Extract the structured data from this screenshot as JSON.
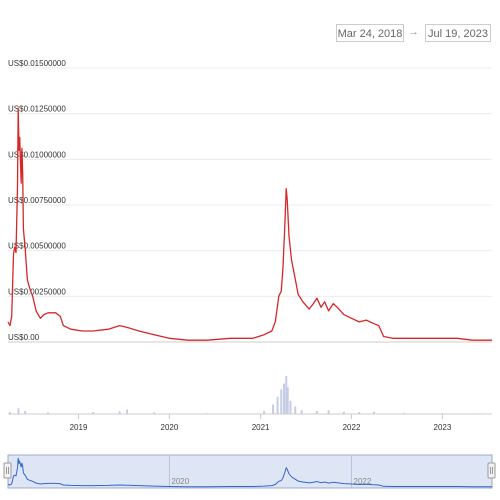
{
  "date_range": {
    "from": "Mar 24, 2018",
    "to": "Jul 19, 2023",
    "arrow": "→"
  },
  "navigator": {
    "tick_labels": [
      "2020",
      "2022"
    ]
  },
  "chart_data": {
    "type": "line",
    "title": "",
    "xlabel": "",
    "ylabel": "",
    "x_range": [
      "2018-03-24",
      "2023-07-19"
    ],
    "ylim": [
      0,
      0.015
    ],
    "y_tick_labels": [
      "US$0.01500000",
      "US$0.01250000",
      "US$0.01000000",
      "US$0.00750000",
      "US$0.00500000",
      "US$0.00250000",
      "US$0.00"
    ],
    "y_tick_values": [
      0.015,
      0.0125,
      0.01,
      0.0075,
      0.005,
      0.0025,
      0
    ],
    "x_tick_labels": [
      "2019",
      "2020",
      "2021",
      "2022",
      "2023"
    ],
    "x_tick_dates": [
      "2019-01-01",
      "2020-01-01",
      "2021-01-01",
      "2022-01-01",
      "2023-01-01"
    ],
    "series": [
      {
        "color": "#d62728",
        "points": [
          [
            "2018-03-24",
            0.0011
          ],
          [
            "2018-04-01",
            0.0009
          ],
          [
            "2018-04-08",
            0.0014
          ],
          [
            "2018-04-15",
            0.0048
          ],
          [
            "2018-04-20",
            0.0052
          ],
          [
            "2018-04-25",
            0.0049
          ],
          [
            "2018-05-01",
            0.0085
          ],
          [
            "2018-05-04",
            0.0128
          ],
          [
            "2018-05-07",
            0.0105
          ],
          [
            "2018-05-10",
            0.0112
          ],
          [
            "2018-05-13",
            0.0098
          ],
          [
            "2018-05-16",
            0.0087
          ],
          [
            "2018-05-19",
            0.0106
          ],
          [
            "2018-05-22",
            0.0092
          ],
          [
            "2018-05-25",
            0.0062
          ],
          [
            "2018-06-01",
            0.0051
          ],
          [
            "2018-06-10",
            0.0034
          ],
          [
            "2018-06-20",
            0.0029
          ],
          [
            "2018-07-01",
            0.0025
          ],
          [
            "2018-07-15",
            0.0017
          ],
          [
            "2018-08-01",
            0.0013
          ],
          [
            "2018-08-15",
            0.0015
          ],
          [
            "2018-09-01",
            0.0016
          ],
          [
            "2018-10-01",
            0.0016
          ],
          [
            "2018-10-20",
            0.0014
          ],
          [
            "2018-11-01",
            0.0009
          ],
          [
            "2018-12-01",
            0.0007
          ],
          [
            "2019-01-15",
            0.0006
          ],
          [
            "2019-03-01",
            0.0006
          ],
          [
            "2019-05-01",
            0.0007
          ],
          [
            "2019-06-15",
            0.0009
          ],
          [
            "2019-07-15",
            0.0008
          ],
          [
            "2019-09-01",
            0.0006
          ],
          [
            "2019-11-01",
            0.0004
          ],
          [
            "2020-01-01",
            0.0002
          ],
          [
            "2020-03-15",
            0.0001
          ],
          [
            "2020-06-01",
            0.0001
          ],
          [
            "2020-09-01",
            0.0002
          ],
          [
            "2020-12-01",
            0.0002
          ],
          [
            "2021-01-15",
            0.0004
          ],
          [
            "2021-02-15",
            0.0006
          ],
          [
            "2021-03-01",
            0.0011
          ],
          [
            "2021-03-15",
            0.0025
          ],
          [
            "2021-03-25",
            0.0028
          ],
          [
            "2021-04-01",
            0.0041
          ],
          [
            "2021-04-08",
            0.0062
          ],
          [
            "2021-04-14",
            0.0084
          ],
          [
            "2021-04-18",
            0.0078
          ],
          [
            "2021-04-25",
            0.0058
          ],
          [
            "2021-05-05",
            0.0045
          ],
          [
            "2021-05-15",
            0.0038
          ],
          [
            "2021-06-01",
            0.0026
          ],
          [
            "2021-06-20",
            0.0022
          ],
          [
            "2021-07-15",
            0.0018
          ],
          [
            "2021-08-01",
            0.0021
          ],
          [
            "2021-08-15",
            0.0024
          ],
          [
            "2021-09-01",
            0.0019
          ],
          [
            "2021-09-15",
            0.0022
          ],
          [
            "2021-10-01",
            0.0017
          ],
          [
            "2021-10-20",
            0.0021
          ],
          [
            "2021-11-05",
            0.0019
          ],
          [
            "2021-12-01",
            0.0015
          ],
          [
            "2022-01-01",
            0.0013
          ],
          [
            "2022-02-01",
            0.0011
          ],
          [
            "2022-03-01",
            0.0012
          ],
          [
            "2022-04-01",
            0.001
          ],
          [
            "2022-04-20",
            0.0009
          ],
          [
            "2022-05-10",
            0.0003
          ],
          [
            "2022-06-15",
            0.0002
          ],
          [
            "2022-09-01",
            0.0002
          ],
          [
            "2022-12-01",
            0.0002
          ],
          [
            "2023-03-01",
            0.0002
          ],
          [
            "2023-05-01",
            0.0001
          ],
          [
            "2023-07-19",
            0.0001
          ]
        ]
      }
    ],
    "volume": [
      [
        "2018-04-01",
        0.05
      ],
      [
        "2018-05-05",
        0.15
      ],
      [
        "2018-06-01",
        0.08
      ],
      [
        "2018-09-01",
        0.04
      ],
      [
        "2019-03-01",
        0.05
      ],
      [
        "2019-06-15",
        0.07
      ],
      [
        "2019-07-15",
        0.12
      ],
      [
        "2019-11-01",
        0.04
      ],
      [
        "2020-06-01",
        0.02
      ],
      [
        "2021-01-15",
        0.08
      ],
      [
        "2021-02-20",
        0.25
      ],
      [
        "2021-03-10",
        0.45
      ],
      [
        "2021-03-25",
        0.65
      ],
      [
        "2021-04-05",
        0.8
      ],
      [
        "2021-04-14",
        1.0
      ],
      [
        "2021-04-20",
        0.7
      ],
      [
        "2021-05-01",
        0.35
      ],
      [
        "2021-05-20",
        0.2
      ],
      [
        "2021-06-15",
        0.1
      ],
      [
        "2021-08-15",
        0.08
      ],
      [
        "2021-10-01",
        0.1
      ],
      [
        "2021-12-01",
        0.06
      ],
      [
        "2022-02-01",
        0.05
      ],
      [
        "2022-04-01",
        0.06
      ],
      [
        "2022-08-01",
        0.03
      ],
      [
        "2023-01-01",
        0.02
      ],
      [
        "2023-06-01",
        0.02
      ]
    ]
  }
}
